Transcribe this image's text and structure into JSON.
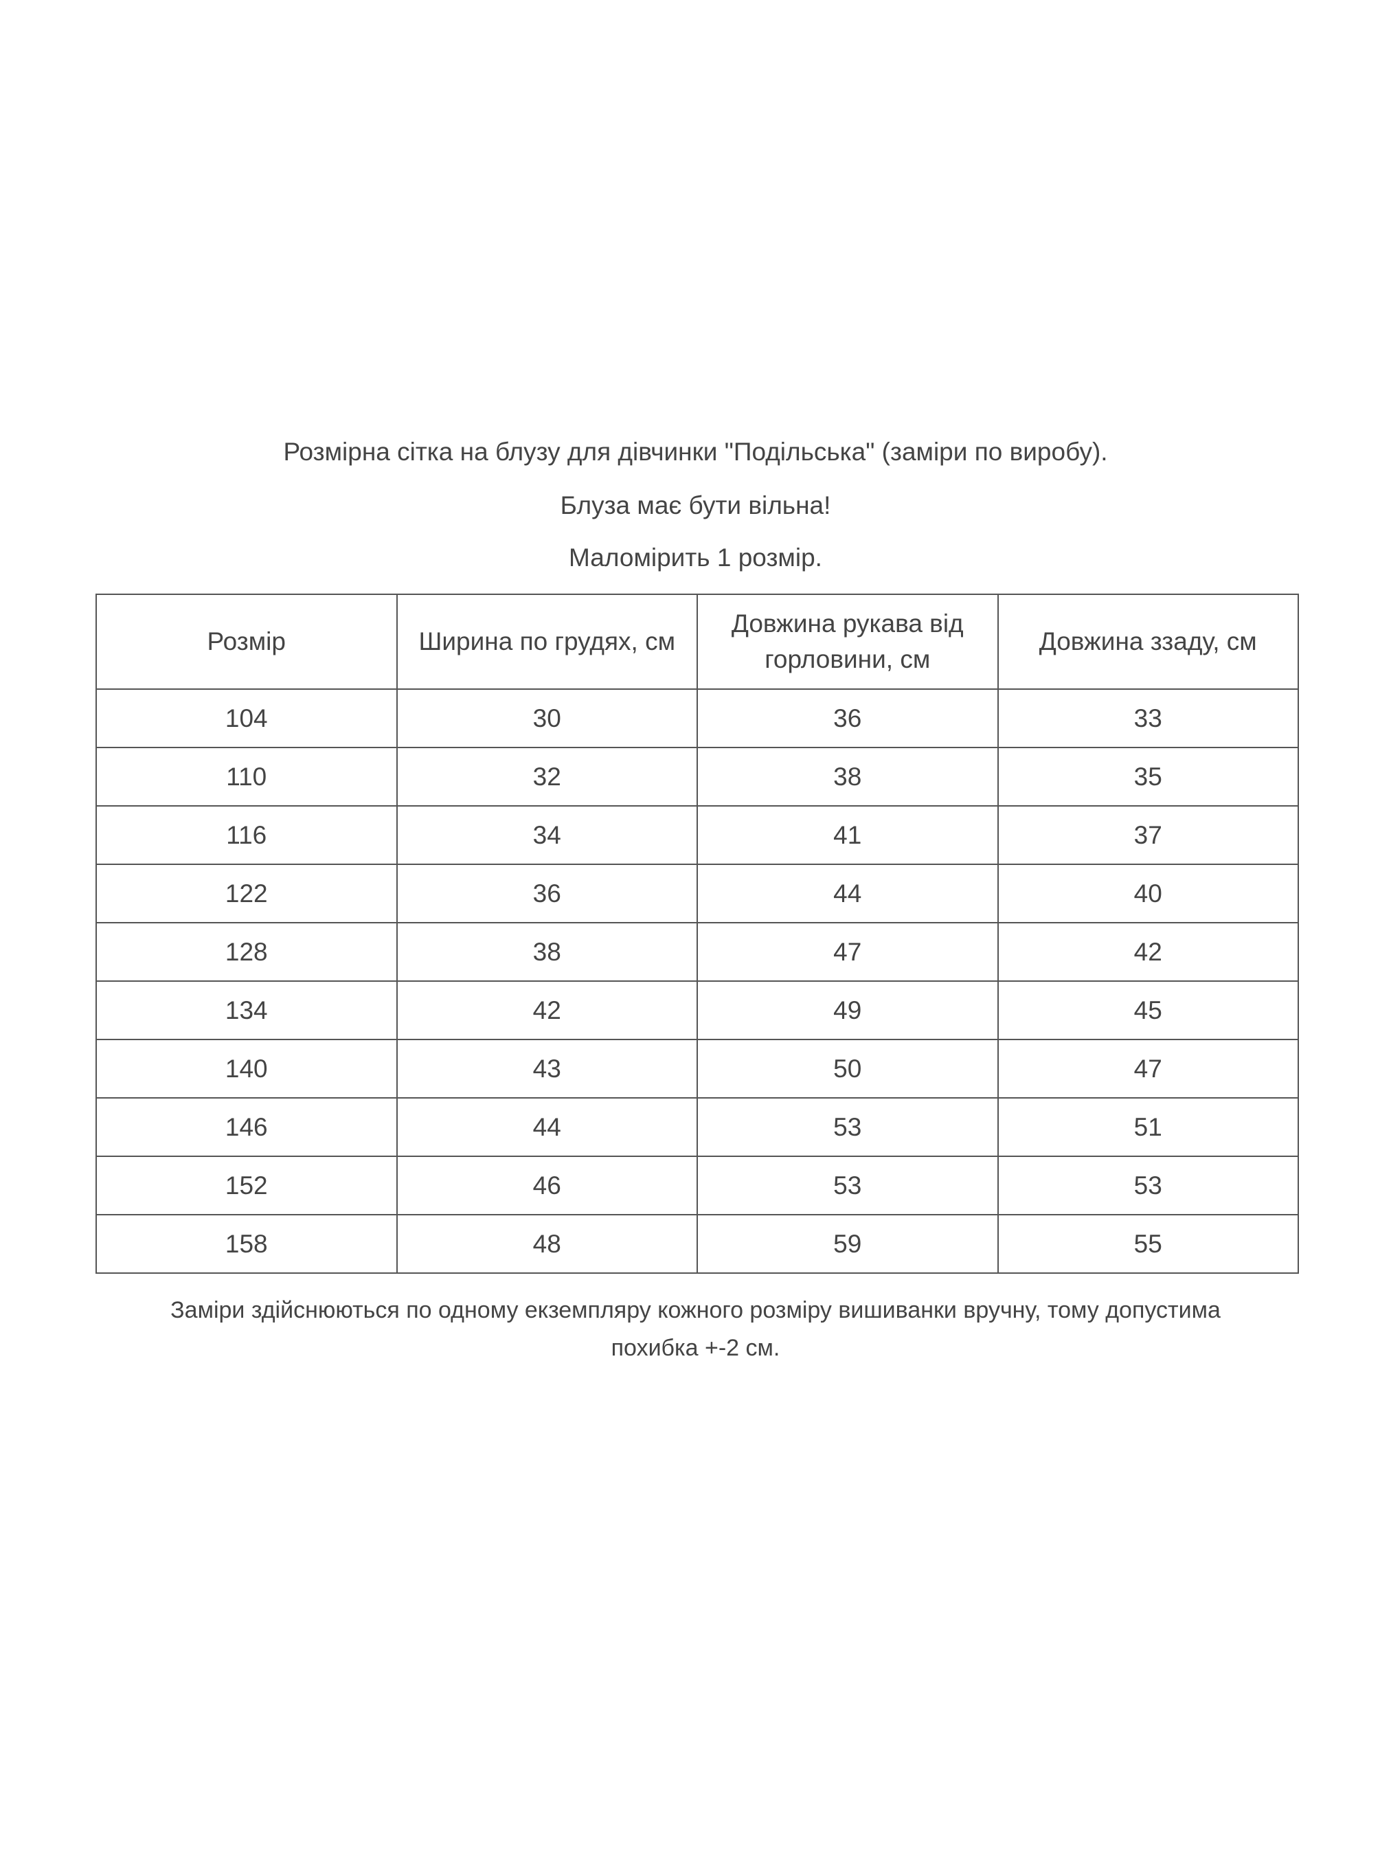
{
  "heading": {
    "title": "Розмірна сітка на блузу для дівчинки \"Подільська\" (заміри по виробу).",
    "note1": "Блуза має бути вільна!",
    "note2": "Маломірить 1 розмір."
  },
  "table": {
    "headers": [
      "Розмір",
      "Ширина по грудях, см",
      "Довжина рукава від горловини, см",
      "Довжина ззаду, см"
    ],
    "rows": [
      [
        "104",
        "30",
        "36",
        "33"
      ],
      [
        "110",
        "32",
        "38",
        "35"
      ],
      [
        "116",
        "34",
        "41",
        "37"
      ],
      [
        "122",
        "36",
        "44",
        "40"
      ],
      [
        "128",
        "38",
        "47",
        "42"
      ],
      [
        "134",
        "42",
        "49",
        "45"
      ],
      [
        "140",
        "43",
        "50",
        "47"
      ],
      [
        "146",
        "44",
        "53",
        "51"
      ],
      [
        "152",
        "46",
        "53",
        "53"
      ],
      [
        "158",
        "48",
        "59",
        "55"
      ]
    ]
  },
  "footer": {
    "line1": "Заміри здійснюються  по одному екземпляру кожного розміру вишиванки вручну, тому допустима",
    "line2": "похибка +-2 см."
  }
}
